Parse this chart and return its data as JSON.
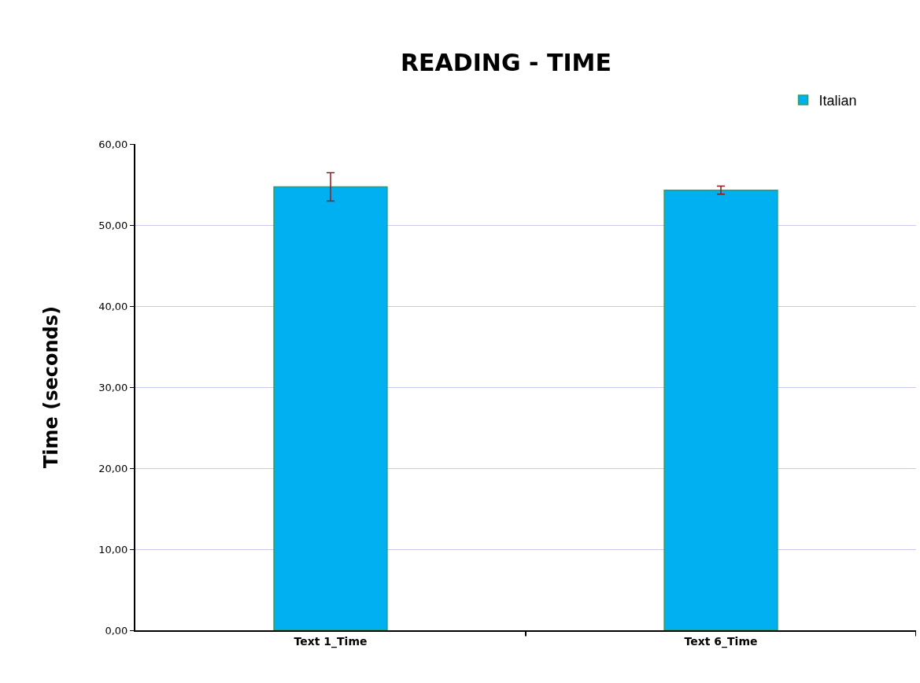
{
  "chart_data": {
    "type": "bar",
    "title": "READING - TIME",
    "ylabel": "Time (seconds)",
    "categories": [
      "Text 1_Time",
      "Text 6_Time"
    ],
    "series": [
      {
        "name": "Italian",
        "color": "#00b0f0",
        "values": [
          54.7,
          54.3
        ],
        "errors": [
          1.75,
          0.5
        ]
      }
    ],
    "ylim": [
      0,
      60
    ],
    "yticks": [
      {
        "value": 0,
        "label": "0,00"
      },
      {
        "value": 10,
        "label": "10,00"
      },
      {
        "value": 20,
        "label": "20,00"
      },
      {
        "value": 30,
        "label": "30,00"
      },
      {
        "value": 40,
        "label": "40,00"
      },
      {
        "value": 50,
        "label": "50,00"
      },
      {
        "value": 60,
        "label": "60,00"
      }
    ],
    "grid": "y",
    "legend": "top right"
  }
}
